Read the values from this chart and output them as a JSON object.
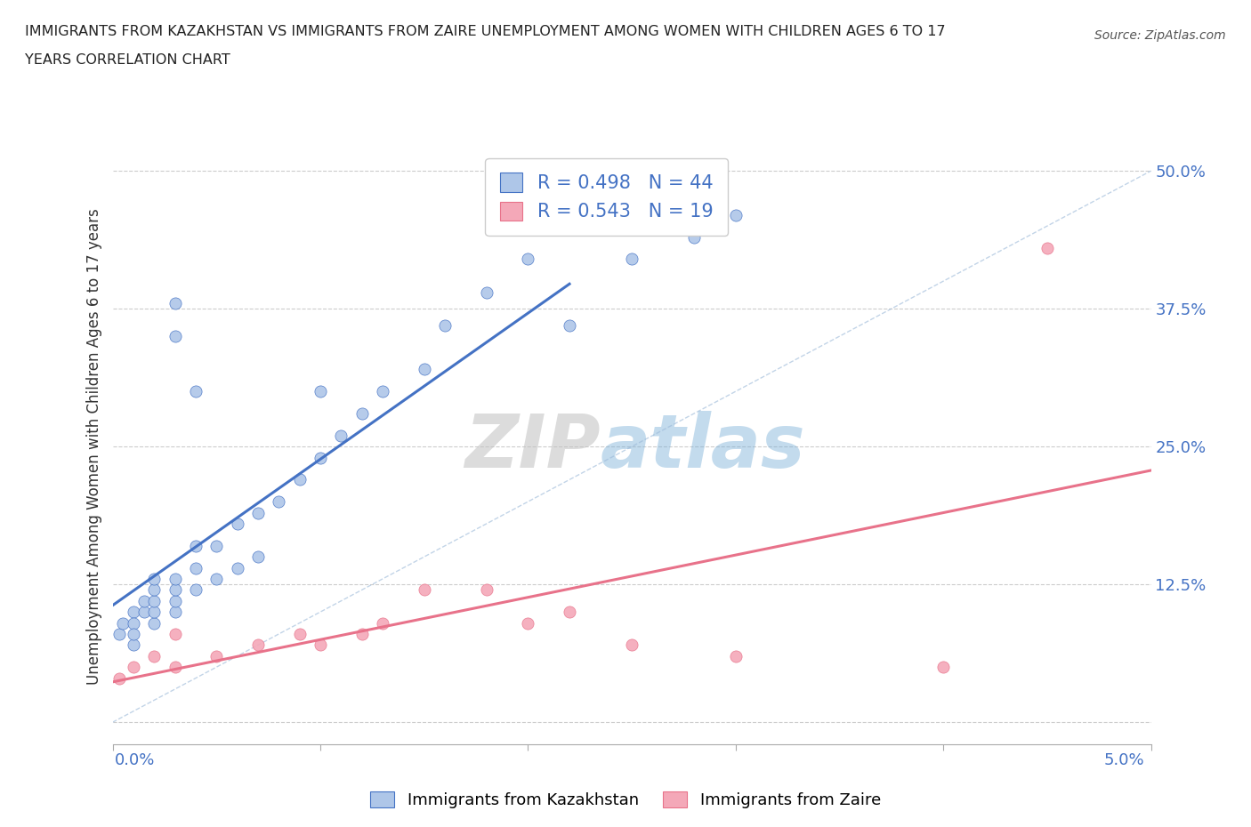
{
  "title_line1": "IMMIGRANTS FROM KAZAKHSTAN VS IMMIGRANTS FROM ZAIRE UNEMPLOYMENT AMONG WOMEN WITH CHILDREN AGES 6 TO 17",
  "title_line2": "YEARS CORRELATION CHART",
  "source": "Source: ZipAtlas.com",
  "ylabel": "Unemployment Among Women with Children Ages 6 to 17 years",
  "legend_1_label": "Immigrants from Kazakhstan",
  "legend_2_label": "Immigrants from Zaire",
  "R1": 0.498,
  "N1": 44,
  "R2": 0.543,
  "N2": 19,
  "color_kaz": "#aec6e8",
  "color_zaire": "#f4a8b8",
  "line_color_kaz": "#4472C4",
  "line_color_zaire": "#E8728A",
  "diag_color": "#9ab8d8",
  "xlim": [
    0.0,
    0.05
  ],
  "ylim": [
    -0.02,
    0.52
  ],
  "yticks": [
    0.0,
    0.125,
    0.25,
    0.375,
    0.5
  ],
  "ytick_labels": [
    "",
    "12.5%",
    "25.0%",
    "37.5%",
    "50.0%"
  ],
  "xtick_positions": [
    0.0,
    0.01,
    0.02,
    0.03,
    0.04,
    0.05
  ],
  "kaz_x": [
    0.0003,
    0.0005,
    0.001,
    0.001,
    0.001,
    0.001,
    0.0015,
    0.0015,
    0.002,
    0.002,
    0.002,
    0.002,
    0.002,
    0.003,
    0.003,
    0.003,
    0.003,
    0.004,
    0.004,
    0.004,
    0.005,
    0.005,
    0.006,
    0.006,
    0.007,
    0.007,
    0.008,
    0.009,
    0.01,
    0.011,
    0.012,
    0.013,
    0.015,
    0.016,
    0.018,
    0.02,
    0.022,
    0.025,
    0.028,
    0.03,
    0.01,
    0.003,
    0.004,
    0.003
  ],
  "kaz_y": [
    0.08,
    0.09,
    0.07,
    0.1,
    0.09,
    0.08,
    0.1,
    0.11,
    0.09,
    0.1,
    0.11,
    0.12,
    0.13,
    0.1,
    0.11,
    0.12,
    0.13,
    0.12,
    0.14,
    0.16,
    0.13,
    0.16,
    0.14,
    0.18,
    0.15,
    0.19,
    0.2,
    0.22,
    0.24,
    0.26,
    0.28,
    0.3,
    0.32,
    0.36,
    0.39,
    0.42,
    0.36,
    0.42,
    0.44,
    0.46,
    0.3,
    0.35,
    0.3,
    0.38
  ],
  "zaire_x": [
    0.0003,
    0.001,
    0.002,
    0.003,
    0.003,
    0.005,
    0.007,
    0.009,
    0.01,
    0.012,
    0.013,
    0.015,
    0.018,
    0.02,
    0.022,
    0.025,
    0.03,
    0.04,
    0.045
  ],
  "zaire_y": [
    0.04,
    0.05,
    0.06,
    0.08,
    0.05,
    0.06,
    0.07,
    0.08,
    0.07,
    0.08,
    0.09,
    0.12,
    0.12,
    0.09,
    0.1,
    0.07,
    0.06,
    0.05,
    0.43
  ],
  "kaz_line_x0": 0.0,
  "kaz_line_x1": 0.022,
  "zaire_line_x0": 0.0,
  "zaire_line_x1": 0.05,
  "watermark_zip": "ZIP",
  "watermark_atlas": "atlas"
}
